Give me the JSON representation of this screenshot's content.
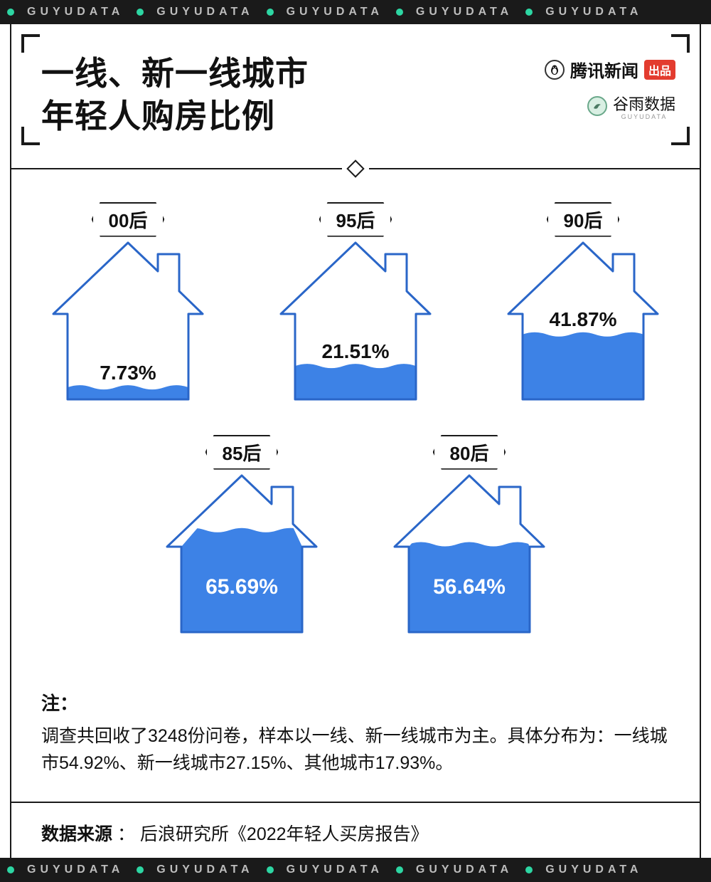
{
  "strip": {
    "word": "GUYUDATA",
    "dot_color": "#2dd6a3",
    "text_color": "#bdbdbd",
    "bg_color": "#1a1a1a",
    "repeat": 5
  },
  "header": {
    "title_line1": "一线、新一线城市",
    "title_line2": "年轻人购房比例",
    "logo_tencent_text": "腾讯新闻",
    "logo_tencent_badge": "出品",
    "logo_guyu_text": "谷雨数据",
    "logo_guyu_sub": "GUYUDATA"
  },
  "chart": {
    "type": "filled-icon-pictogram",
    "icon": "house",
    "outline_color": "#2a66c8",
    "outline_width": 3,
    "fill_color": "#3d82e6",
    "background_color": "#ffffff",
    "label_border_color": "#1a1a1a",
    "label_fontsize": 26,
    "pct_fontsize_dark": 28,
    "pct_fontsize_light": 30,
    "pct_color_on_fill": "#ffffff",
    "pct_color_on_bg": "#111111",
    "rows": [
      [
        {
          "label": "00后",
          "pct": 7.73,
          "pct_text": "7.73%",
          "text_on_fill": false
        },
        {
          "label": "95后",
          "pct": 21.51,
          "pct_text": "21.51%",
          "text_on_fill": false
        },
        {
          "label": "90后",
          "pct": 41.87,
          "pct_text": "41.87%",
          "text_on_fill": false
        }
      ],
      [
        {
          "label": "85后",
          "pct": 65.69,
          "pct_text": "65.69%",
          "text_on_fill": true
        },
        {
          "label": "80后",
          "pct": 56.64,
          "pct_text": "56.64%",
          "text_on_fill": true
        }
      ]
    ]
  },
  "notes": {
    "head": "注：",
    "body": "调查共回收了3248份问卷，样本以一线、新一线城市为主。具体分布为：一线城市54.92%、新一线城市27.15%、其他城市17.93%。"
  },
  "source": {
    "label": "数据来源",
    "sep": " ： ",
    "text": "后浪研究所《2022年轻人买房报告》"
  },
  "colors": {
    "page_bg": "#ffffff",
    "rule": "#1a1a1a"
  }
}
